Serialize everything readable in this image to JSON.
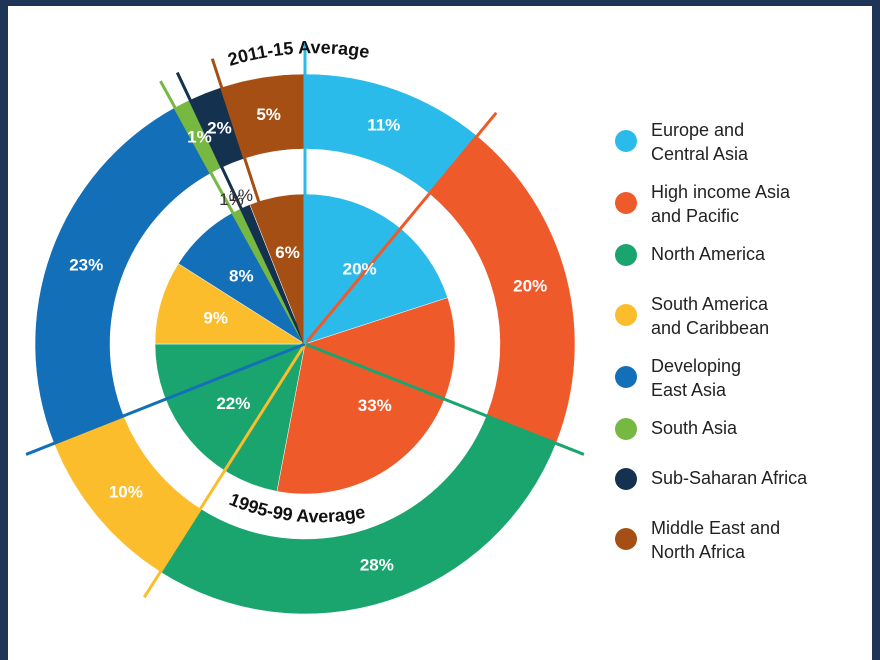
{
  "chart_data": {
    "type": "pie",
    "categories": [
      "Europe and\nCentral Asia",
      "High income Asia\nand Pacific",
      "North America",
      "South America\nand Caribbean",
      "Developing\nEast Asia",
      "South Asia",
      "Sub-Saharan Africa",
      "Middle East and\nNorth Africa"
    ],
    "colors": [
      "#2bbbea",
      "#ef5a2b",
      "#1aa56f",
      "#fbbd2b",
      "#136fb8",
      "#77b843",
      "#14324f",
      "#a54f14"
    ],
    "series": [
      {
        "name": "2011-15 Average",
        "values": [
          11,
          20,
          28,
          10,
          23,
          1,
          2,
          5
        ],
        "labels": [
          "11%",
          "20%",
          "28%",
          "10%",
          "23%",
          "1%",
          "2%",
          "5%"
        ]
      },
      {
        "name": "1995-99 Average",
        "values": [
          20,
          33,
          22,
          9,
          8,
          1,
          1,
          6
        ],
        "labels": [
          "20%",
          "33%",
          "22%",
          "9%",
          "8%",
          "1%",
          "1%",
          "6%"
        ]
      }
    ],
    "legend": "right"
  }
}
